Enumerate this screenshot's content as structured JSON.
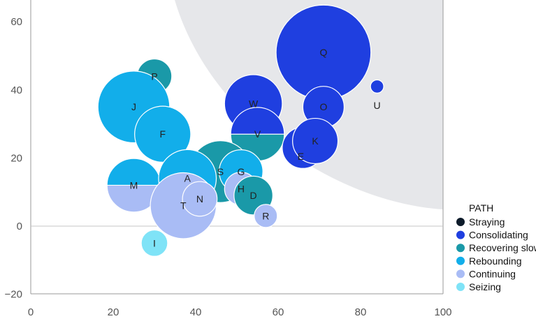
{
  "chart_data": {
    "type": "bubble",
    "xlim": [
      0,
      100
    ],
    "ylim": [
      -20,
      65
    ],
    "x_ticks": [
      0,
      20,
      40,
      60,
      80,
      100
    ],
    "y_ticks": [
      -20,
      0,
      20,
      40,
      60
    ],
    "grid": false,
    "legend_position": "right",
    "legend_title": "PATH",
    "legend": [
      {
        "label": "Straying",
        "color": "#0d1b2a"
      },
      {
        "label": "Consolidating",
        "color": "#1f3fe0"
      },
      {
        "label": "Recovering slowly",
        "color": "#1a99a8"
      },
      {
        "label": "Rebounding",
        "color": "#12aeea"
      },
      {
        "label": "Continuing",
        "color": "#a9bcf5"
      },
      {
        "label": "Seizing",
        "color": "#7fe3f7"
      }
    ],
    "bubbles": [
      {
        "label": "Q",
        "x": 71,
        "y": 51,
        "r": 11.5,
        "path": "Consolidating"
      },
      {
        "label": "O",
        "x": 71,
        "y": 35,
        "r": 5,
        "path": "Consolidating"
      },
      {
        "label": "U",
        "x": 84,
        "y": 41,
        "r": 1.6,
        "path": "Consolidating"
      },
      {
        "label": "W",
        "x": 54,
        "y": 36,
        "r": 7,
        "path": "Consolidating"
      },
      {
        "label": "V",
        "x": 55,
        "y": 27,
        "r": 6.5,
        "path": "Consolidating",
        "lower_path": "Recovering slowly"
      },
      {
        "label": "E",
        "x": 66,
        "y": 23,
        "r": 5,
        "path": "Consolidating"
      },
      {
        "label": "K",
        "x": 69,
        "y": 25,
        "r": 5.5,
        "path": "Consolidating"
      },
      {
        "label": "P",
        "x": 30,
        "y": 44,
        "r": 4.2,
        "path": "Recovering slowly"
      },
      {
        "label": "J",
        "x": 25,
        "y": 35,
        "r": 8.7,
        "path": "Rebounding"
      },
      {
        "label": "F",
        "x": 32,
        "y": 27,
        "r": 6.8,
        "path": "Rebounding"
      },
      {
        "label": "S",
        "x": 46,
        "y": 16,
        "r": 7.5,
        "path": "Recovering slowly"
      },
      {
        "label": "G",
        "x": 51,
        "y": 16,
        "r": 5.3,
        "path": "Rebounding"
      },
      {
        "label": "H",
        "x": 51,
        "y": 11,
        "r": 4,
        "path": "Continuing"
      },
      {
        "label": "D",
        "x": 54,
        "y": 9,
        "r": 4.7,
        "path": "Recovering slowly"
      },
      {
        "label": "R",
        "x": 57,
        "y": 3,
        "r": 2.8,
        "path": "Continuing"
      },
      {
        "label": "M",
        "x": 25,
        "y": 12,
        "r": 6.5,
        "path": "Rebounding",
        "lower_path": "Continuing"
      },
      {
        "label": "A",
        "x": 38,
        "y": 14,
        "r": 7,
        "path": "Rebounding"
      },
      {
        "label": "T",
        "x": 37,
        "y": 6,
        "r": 8,
        "path": "Continuing"
      },
      {
        "label": "N",
        "x": 41,
        "y": 8,
        "r": 4.2,
        "path": "Continuing"
      },
      {
        "label": "I",
        "x": 30,
        "y": -5,
        "r": 3.2,
        "path": "Seizing"
      }
    ]
  }
}
